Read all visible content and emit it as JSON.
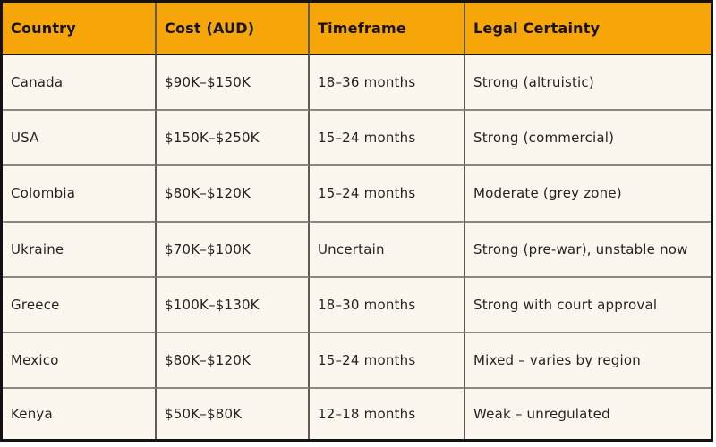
{
  "table": {
    "columns": [
      "Country",
      "Cost (AUD)",
      "Timeframe",
      "Legal Certainty"
    ],
    "rows": [
      {
        "country": "Canada",
        "cost": "$90K–$150K",
        "timeframe": "18–36 months",
        "certainty": "Strong (altruistic)"
      },
      {
        "country": "USA",
        "cost": "$150K–$250K",
        "timeframe": "15–24 months",
        "certainty": "Strong (commercial)"
      },
      {
        "country": "Colombia",
        "cost": "$80K–$120K",
        "timeframe": "15–24 months",
        "certainty": "Moderate (grey zone)"
      },
      {
        "country": "Ukraine",
        "cost": "$70K–$100K",
        "timeframe": "Uncertain",
        "certainty": "Strong (pre-war), unstable now"
      },
      {
        "country": "Greece",
        "cost": "$100K–$130K",
        "timeframe": "18–30 months",
        "certainty": "Strong with court approval"
      },
      {
        "country": "Mexico",
        "cost": "$80K–$120K",
        "timeframe": "15–24 months",
        "certainty": "Mixed – varies by region"
      },
      {
        "country": "Kenya",
        "cost": "$50K–$80K",
        "timeframe": "12–18 months",
        "certainty": "Weak – unregulated"
      }
    ],
    "colors": {
      "header_bg": "#F7A60A",
      "body_bg": "#FCF7EE",
      "outer_border": "#121212",
      "header_border": "#1D1A17",
      "vertical_border": "#5F5B56",
      "horizontal_border": "#8D8780",
      "header_text": "#171310",
      "body_text": "#262220",
      "page_bg": "#FFFFFF"
    }
  }
}
